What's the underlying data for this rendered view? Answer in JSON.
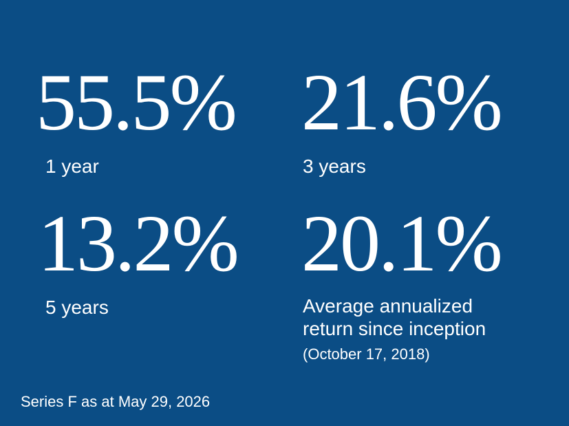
{
  "stats": [
    {
      "value": "55.5%",
      "label": [
        "1 year"
      ]
    },
    {
      "value": "21.6%",
      "label": [
        "3 years"
      ]
    },
    {
      "value": "13.2%",
      "label": [
        "5 years"
      ]
    },
    {
      "value": "20.1%",
      "label": [
        "Average annualized",
        "return since inception"
      ],
      "note": "(October 17, 2018)"
    }
  ],
  "footer": "Series F as at May 29, 2026"
}
